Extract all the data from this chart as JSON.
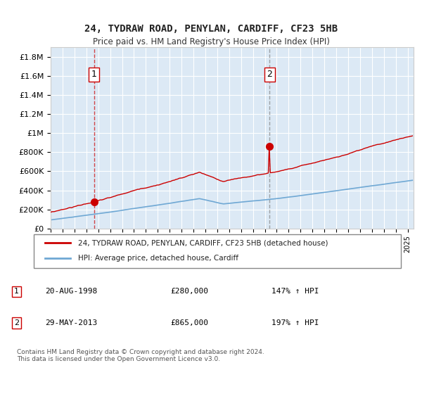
{
  "title": "24, TYDRAW ROAD, PENYLAN, CARDIFF, CF23 5HB",
  "subtitle": "Price paid vs. HM Land Registry's House Price Index (HPI)",
  "background_color": "#ffffff",
  "plot_bg_color": "#dce9f5",
  "grid_color": "#ffffff",
  "hpi_line_color": "#6fa8d4",
  "price_line_color": "#cc0000",
  "sale1_date": 1998.64,
  "sale1_price": 280000,
  "sale2_date": 2013.41,
  "sale2_price": 865000,
  "legend_label1": "24, TYDRAW ROAD, PENYLAN, CARDIFF, CF23 5HB (detached house)",
  "legend_label2": "HPI: Average price, detached house, Cardiff",
  "table_row1": [
    "1",
    "20-AUG-1998",
    "£280,000",
    "147% ↑ HPI"
  ],
  "table_row2": [
    "2",
    "29-MAY-2013",
    "£865,000",
    "197% ↑ HPI"
  ],
  "footer": "Contains HM Land Registry data © Crown copyright and database right 2024.\nThis data is licensed under the Open Government Licence v3.0.",
  "ylim": [
    0,
    1900000
  ],
  "xlim_start": 1995.0,
  "xlim_end": 2025.5,
  "yticks": [
    0,
    200000,
    400000,
    600000,
    800000,
    1000000,
    1200000,
    1400000,
    1600000,
    1800000
  ],
  "ytick_labels": [
    "£0",
    "£200K",
    "£400K",
    "£600K",
    "£800K",
    "£1M",
    "£1.2M",
    "£1.4M",
    "£1.6M",
    "£1.8M"
  ],
  "xticks": [
    1995,
    1996,
    1997,
    1998,
    1999,
    2000,
    2001,
    2002,
    2003,
    2004,
    2005,
    2006,
    2007,
    2008,
    2009,
    2010,
    2011,
    2012,
    2013,
    2014,
    2015,
    2016,
    2017,
    2018,
    2019,
    2020,
    2021,
    2022,
    2023,
    2024,
    2025
  ]
}
